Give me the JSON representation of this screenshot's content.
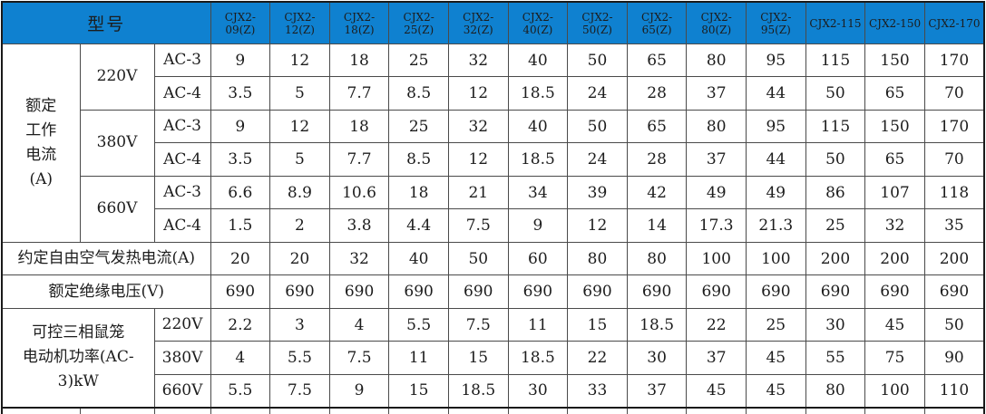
{
  "header": {
    "corner_label": "型号",
    "models": [
      "CJX2-09(Z)",
      "CJX2-12(Z)",
      "CJX2-18(Z)",
      "CJX2-25(Z)",
      "CJX2-32(Z)",
      "CJX2-40(Z)",
      "CJX2-50(Z)",
      "CJX2-65(Z)",
      "CJX2-80(Z)",
      "CJX2-95(Z)",
      "CJX2-115",
      "CJX2-150",
      "CJX2-170"
    ]
  },
  "colors": {
    "header_bg": "#0f81d0",
    "header_text": "#ffffff",
    "grid_line": "#4a4a4a",
    "outer_border": "#1a1a1a",
    "body_text": "#1c1c1c"
  },
  "rows": [
    {
      "leads": [
        {
          "label": "额定\n工作\n电流\n(A)",
          "rowspan": 6
        },
        {
          "label": "220V",
          "rowspan": 2
        },
        {
          "label": "AC-3"
        }
      ],
      "values": [
        "9",
        "12",
        "18",
        "25",
        "32",
        "40",
        "50",
        "65",
        "80",
        "95",
        "115",
        "150",
        "170"
      ]
    },
    {
      "leads": [
        {
          "label": "AC-4"
        }
      ],
      "values": [
        "3.5",
        "5",
        "7.7",
        "8.5",
        "12",
        "18.5",
        "24",
        "28",
        "37",
        "44",
        "50",
        "65",
        "70"
      ]
    },
    {
      "leads": [
        {
          "label": "380V",
          "rowspan": 2
        },
        {
          "label": "AC-3"
        }
      ],
      "values": [
        "9",
        "12",
        "18",
        "25",
        "32",
        "40",
        "50",
        "65",
        "80",
        "95",
        "115",
        "150",
        "170"
      ]
    },
    {
      "leads": [
        {
          "label": "AC-4"
        }
      ],
      "values": [
        "3.5",
        "5",
        "7.7",
        "8.5",
        "12",
        "18.5",
        "24",
        "28",
        "37",
        "44",
        "50",
        "65",
        "70"
      ]
    },
    {
      "leads": [
        {
          "label": "660V",
          "rowspan": 2
        },
        {
          "label": "AC-3"
        }
      ],
      "values": [
        "6.6",
        "8.9",
        "10.6",
        "18",
        "21",
        "34",
        "39",
        "42",
        "49",
        "49",
        "86",
        "107",
        "118"
      ]
    },
    {
      "leads": [
        {
          "label": "AC-4"
        }
      ],
      "values": [
        "1.5",
        "2",
        "3.8",
        "4.4",
        "7.5",
        "9",
        "12",
        "14",
        "17.3",
        "21.3",
        "25",
        "32",
        "35"
      ]
    },
    {
      "leads": [
        {
          "label": "约定自由空气发热电流(A)",
          "colspan": 3
        }
      ],
      "values": [
        "20",
        "20",
        "32",
        "40",
        "50",
        "60",
        "80",
        "80",
        "100",
        "100",
        "200",
        "200",
        "200"
      ]
    },
    {
      "leads": [
        {
          "label": "额定绝缘电压(V)",
          "colspan": 3
        }
      ],
      "values": [
        "690",
        "690",
        "690",
        "690",
        "690",
        "690",
        "690",
        "690",
        "690",
        "690",
        "690",
        "690",
        "690"
      ]
    },
    {
      "leads": [
        {
          "label": "可控三相鼠笼\n电动机功率(AC-3)kW",
          "colspan": 2,
          "rowspan": 3
        },
        {
          "label": "220V"
        }
      ],
      "values": [
        "2.2",
        "3",
        "4",
        "5.5",
        "7.5",
        "11",
        "15",
        "18.5",
        "22",
        "25",
        "30",
        "45",
        "50"
      ]
    },
    {
      "leads": [
        {
          "label": "380V"
        }
      ],
      "values": [
        "4",
        "5.5",
        "7.5",
        "11",
        "15",
        "18.5",
        "22",
        "30",
        "37",
        "45",
        "55",
        "75",
        "90"
      ]
    },
    {
      "leads": [
        {
          "label": "660V"
        }
      ],
      "values": [
        "5.5",
        "7.5",
        "9",
        "15",
        "18.5",
        "30",
        "33",
        "37",
        "45",
        "45",
        "80",
        "100",
        "110"
      ]
    }
  ]
}
